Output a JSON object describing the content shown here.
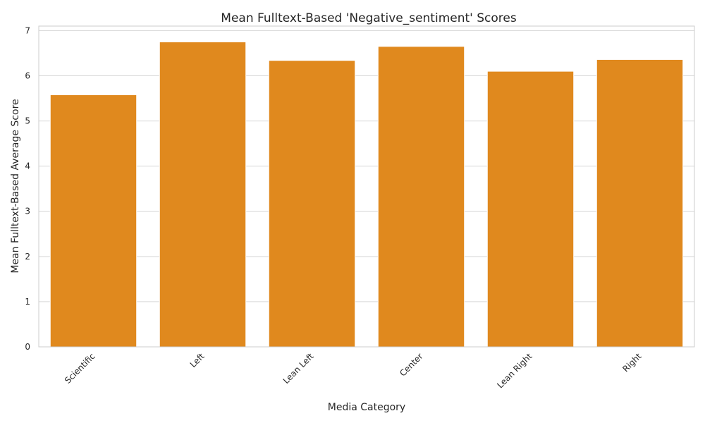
{
  "chart_data": {
    "type": "bar",
    "title": "Mean Fulltext-Based 'Negative_sentiment' Scores",
    "xlabel": "Media Category",
    "ylabel": "Mean Fulltext-Based Average Score",
    "categories": [
      "Scientific",
      "Left",
      "Lean Left",
      "Center",
      "Lean Right",
      "Right"
    ],
    "values": [
      5.58,
      6.75,
      6.34,
      6.65,
      6.1,
      6.36
    ],
    "ylim": [
      0,
      7.1
    ],
    "yticks": [
      0,
      1,
      2,
      3,
      4,
      5,
      6,
      7
    ],
    "grid": "horizontal",
    "bar_color": "#e0891e"
  }
}
